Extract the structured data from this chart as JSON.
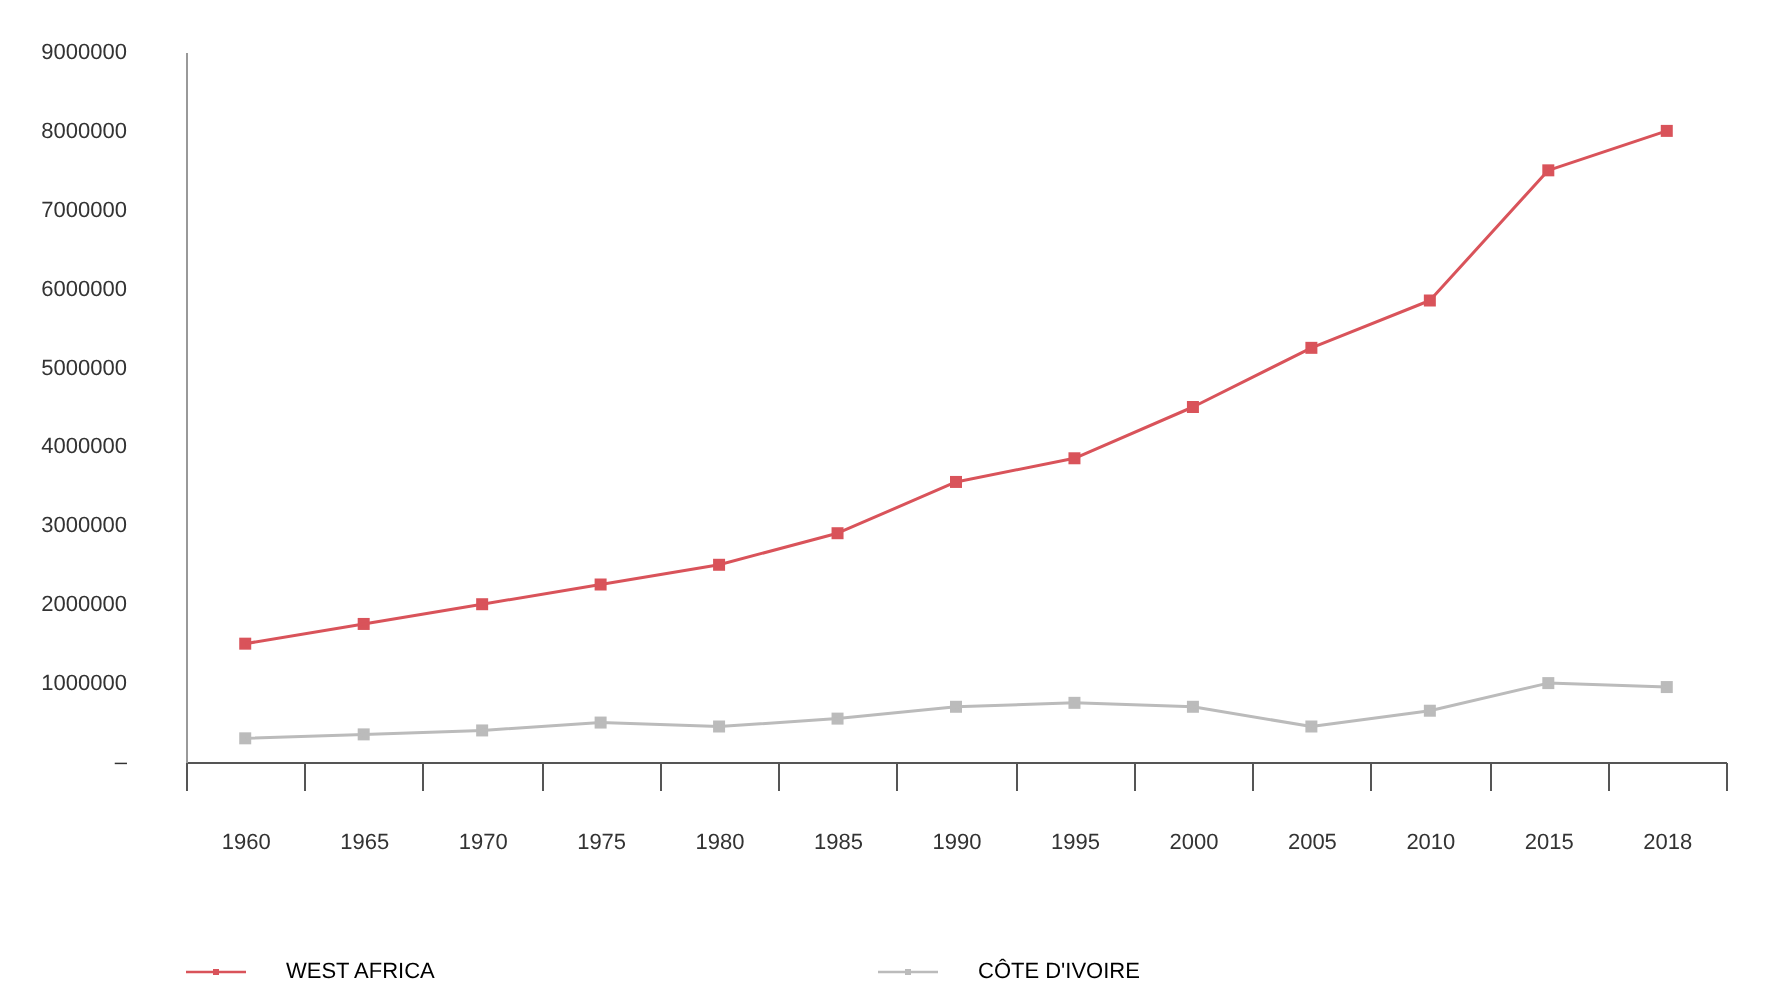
{
  "chart_data": {
    "type": "line",
    "categories": [
      "1960",
      "1965",
      "1970",
      "1975",
      "1980",
      "1985",
      "1990",
      "1995",
      "2000",
      "2005",
      "2010",
      "2015",
      "2018"
    ],
    "series": [
      {
        "name": "WEST AFRICA",
        "color": "#d9535a",
        "values": [
          1500000,
          1750000,
          2000000,
          2250000,
          2500000,
          2900000,
          3550000,
          3850000,
          4500000,
          5250000,
          5850000,
          7500000,
          8000000
        ]
      },
      {
        "name": "CÔTE D'IVOIRE",
        "color": "#bbbbbb",
        "values": [
          300000,
          350000,
          400000,
          500000,
          450000,
          550000,
          700000,
          750000,
          700000,
          450000,
          650000,
          1000000,
          950000
        ]
      }
    ],
    "ylim": [
      0,
      9000000
    ],
    "yticks": [
      {
        "value": 0,
        "label": "–"
      },
      1000000,
      2000000,
      3000000,
      4000000,
      5000000,
      6000000,
      7000000,
      8000000,
      9000000
    ],
    "grid": false,
    "legend": "bottom",
    "marker": "square",
    "line_style": "solid"
  }
}
